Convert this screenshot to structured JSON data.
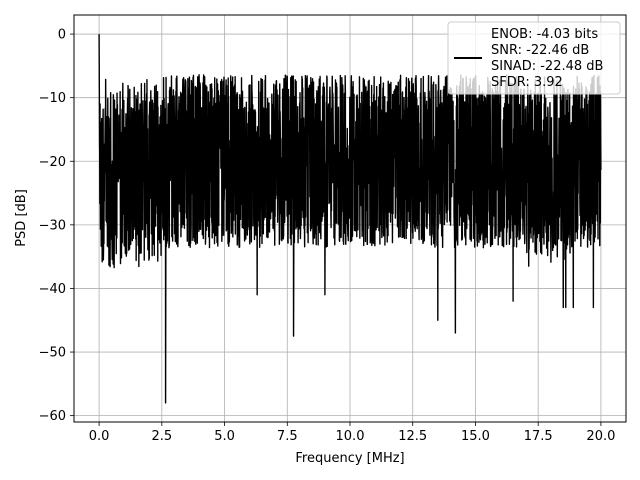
{
  "chart_data": {
    "type": "line",
    "title": "",
    "xlabel": "Frequency [MHz]",
    "ylabel": "PSD [dB]",
    "xlim": [
      -1.0,
      21.0
    ],
    "ylim": [
      -61.0,
      3.0
    ],
    "xticks": [
      0.0,
      2.5,
      5.0,
      7.5,
      10.0,
      12.5,
      15.0,
      17.5,
      20.0
    ],
    "xtick_labels": [
      "0.0",
      "2.5",
      "5.0",
      "7.5",
      "10.0",
      "12.5",
      "15.0",
      "17.5",
      "20.0"
    ],
    "yticks": [
      0,
      -10,
      -20,
      -30,
      -40,
      -50,
      -60
    ],
    "ytick_labels": [
      "0",
      "−10",
      "−20",
      "−30",
      "−40",
      "−50",
      "−60"
    ],
    "grid": true,
    "legend_position": "top-right",
    "legend_lines": [
      "ENOB: -4.03 bits",
      "SNR: -22.46 dB",
      "SINAD: -22.48 dB",
      "SFDR: 3.92"
    ],
    "series": [
      {
        "color": "#000000",
        "summary": {
          "x_range": [
            0.0,
            20.0
          ],
          "peak": {
            "x": 0.0,
            "y": 0.0
          },
          "upper_envelope_approx": -10,
          "lower_envelope_approx": -30,
          "mean_level_approx": -20,
          "deep_dips": [
            {
              "x": 2.65,
              "y": -58
            },
            {
              "x": 7.75,
              "y": -47.5
            },
            {
              "x": 6.3,
              "y": -41
            },
            {
              "x": 9.0,
              "y": -41
            },
            {
              "x": 13.5,
              "y": -45
            },
            {
              "x": 14.2,
              "y": -47
            },
            {
              "x": 16.5,
              "y": -42
            },
            {
              "x": 18.5,
              "y": -43
            },
            {
              "x": 18.6,
              "y": -43
            },
            {
              "x": 18.9,
              "y": -43
            },
            {
              "x": 19.7,
              "y": -43
            }
          ]
        }
      }
    ]
  }
}
